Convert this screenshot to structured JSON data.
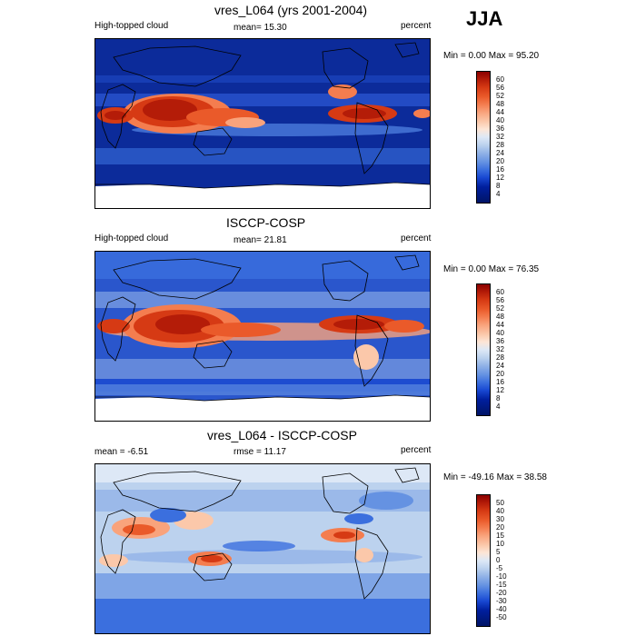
{
  "season": "JJA",
  "panels": [
    {
      "title": "vres_L064 (yrs 2001-2004)",
      "left_label": "High-topped cloud",
      "center_label": "mean=  15.30",
      "right_label": "percent",
      "minmax": "Min =   0.00 Max =  95.20",
      "colorbar": [
        "60",
        "56",
        "52",
        "48",
        "44",
        "40",
        "36",
        "32",
        "28",
        "24",
        "20",
        "16",
        "12",
        "8",
        "4"
      ],
      "colors": [
        "#8b0000",
        "#b41c08",
        "#d63a14",
        "#ea5a2a",
        "#f47d4f",
        "#f9a37c",
        "#fbc8aa",
        "#fde6d6",
        "#dde8f6",
        "#bcd2ee",
        "#92b3e7",
        "#6592e2",
        "#3b6fde",
        "#1848d2",
        "#001f9e",
        "#001466"
      ]
    },
    {
      "title": "ISCCP-COSP",
      "left_label": "High-topped cloud",
      "center_label": "mean=  21.81",
      "right_label": "percent",
      "minmax": "Min =   0.00 Max =  76.35",
      "colorbar": [
        "60",
        "56",
        "52",
        "48",
        "44",
        "40",
        "36",
        "32",
        "28",
        "24",
        "20",
        "16",
        "12",
        "8",
        "4"
      ],
      "colors": [
        "#8b0000",
        "#b41c08",
        "#d63a14",
        "#ea5a2a",
        "#f47d4f",
        "#f9a37c",
        "#fbc8aa",
        "#fde6d6",
        "#dde8f6",
        "#bcd2ee",
        "#92b3e7",
        "#6592e2",
        "#3b6fde",
        "#1848d2",
        "#001f9e",
        "#001466"
      ]
    },
    {
      "title": "vres_L064 - ISCCP-COSP",
      "left_label": "mean =  -6.51",
      "center_label": "rmse =  11.17",
      "right_label": "percent",
      "minmax": "Min = -49.16 Max =  38.58",
      "colorbar": [
        "50",
        "40",
        "30",
        "20",
        "15",
        "10",
        "5",
        "0",
        "-5",
        "-10",
        "-15",
        "-20",
        "-30",
        "-40",
        "-50"
      ],
      "colors": [
        "#8b0000",
        "#b41c08",
        "#d63a14",
        "#ea5a2a",
        "#f47d4f",
        "#f9a37c",
        "#fbc8aa",
        "#fde6d6",
        "#dde8f6",
        "#bcd2ee",
        "#92b3e7",
        "#6592e2",
        "#3b6fde",
        "#1848d2",
        "#001f9e",
        "#001466"
      ]
    }
  ]
}
